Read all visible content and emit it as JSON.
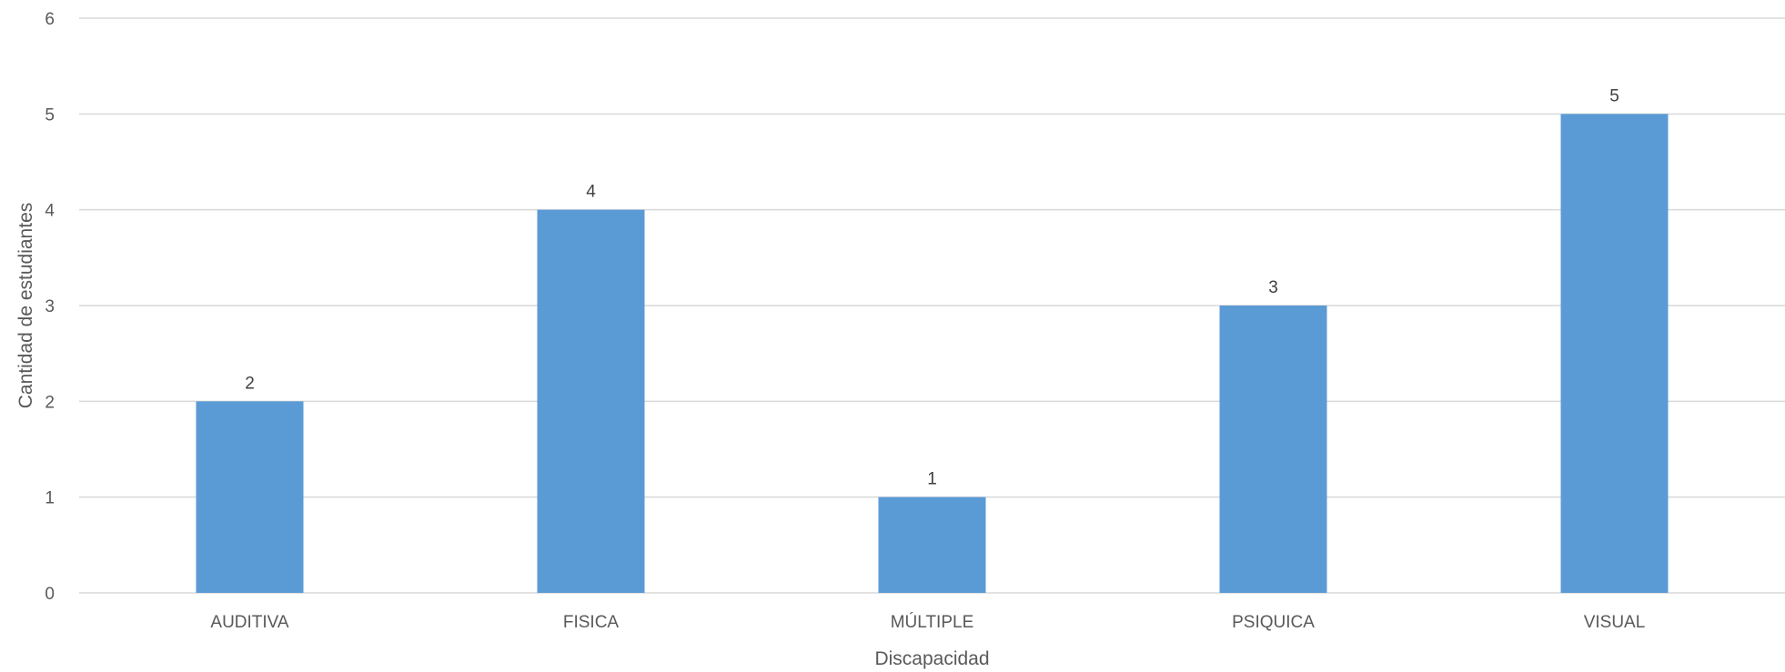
{
  "chart_data": {
    "type": "bar",
    "categories": [
      "AUDITIVA",
      "FISICA",
      "MÚLTIPLE",
      "PSIQUICA",
      "VISUAL"
    ],
    "values": [
      2,
      4,
      1,
      3,
      5
    ],
    "xlabel": "Discapacidad",
    "ylabel": "Cantidad de estudiantes",
    "ylim": [
      0,
      6
    ],
    "yticks": [
      0,
      1,
      2,
      3,
      4,
      5,
      6
    ],
    "grid": true,
    "data_labels": true,
    "bar_color": "#5b9bd5"
  }
}
